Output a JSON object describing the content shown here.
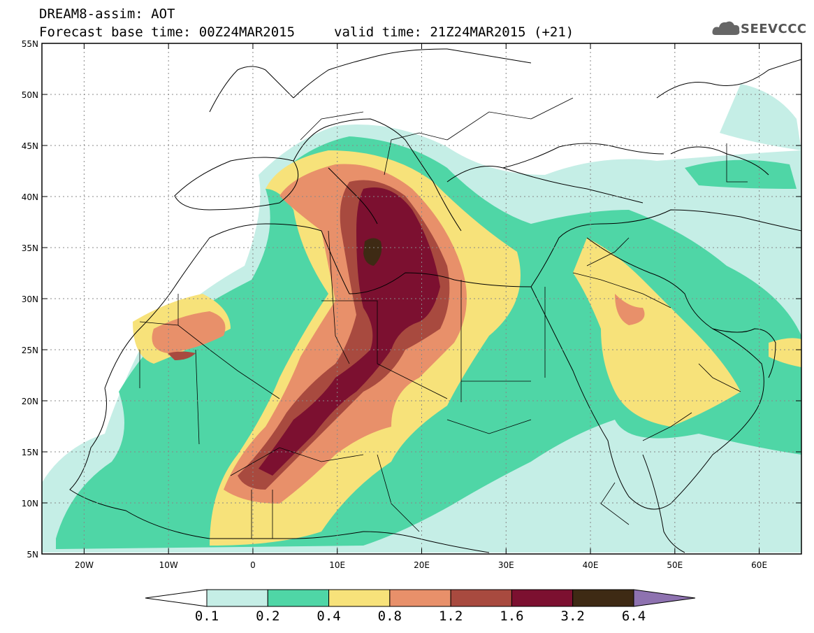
{
  "header": {
    "title": "DREAM8-assim: AOT",
    "base_time": "Forecast base time: 00Z24MAR2015",
    "valid_time": "valid time: 21Z24MAR2015 (+21)"
  },
  "logo": {
    "text": "SEEVCCC",
    "icon": "cloud-icon"
  },
  "map": {
    "projection": "equirectangular",
    "lon_range": [
      -25,
      65
    ],
    "lat_range": [
      5,
      55
    ],
    "lon_ticks": [
      "20W",
      "10W",
      "0",
      "10E",
      "20E",
      "30E",
      "40E",
      "50E",
      "60E"
    ],
    "lat_ticks": [
      "5N",
      "10N",
      "15N",
      "20N",
      "25N",
      "30N",
      "35N",
      "40N",
      "45N",
      "50N",
      "55N"
    ],
    "gridlines": "dotted"
  },
  "colorbar": {
    "labels": [
      "0.1",
      "0.2",
      "0.4",
      "0.8",
      "1.2",
      "1.6",
      "3.2",
      "6.4"
    ],
    "colors": [
      "#ffffff",
      "#c5eee6",
      "#4fd6a6",
      "#f7e27a",
      "#e8906a",
      "#a84a3f",
      "#7c1030",
      "#3e2a14",
      "#8e72b0"
    ]
  }
}
